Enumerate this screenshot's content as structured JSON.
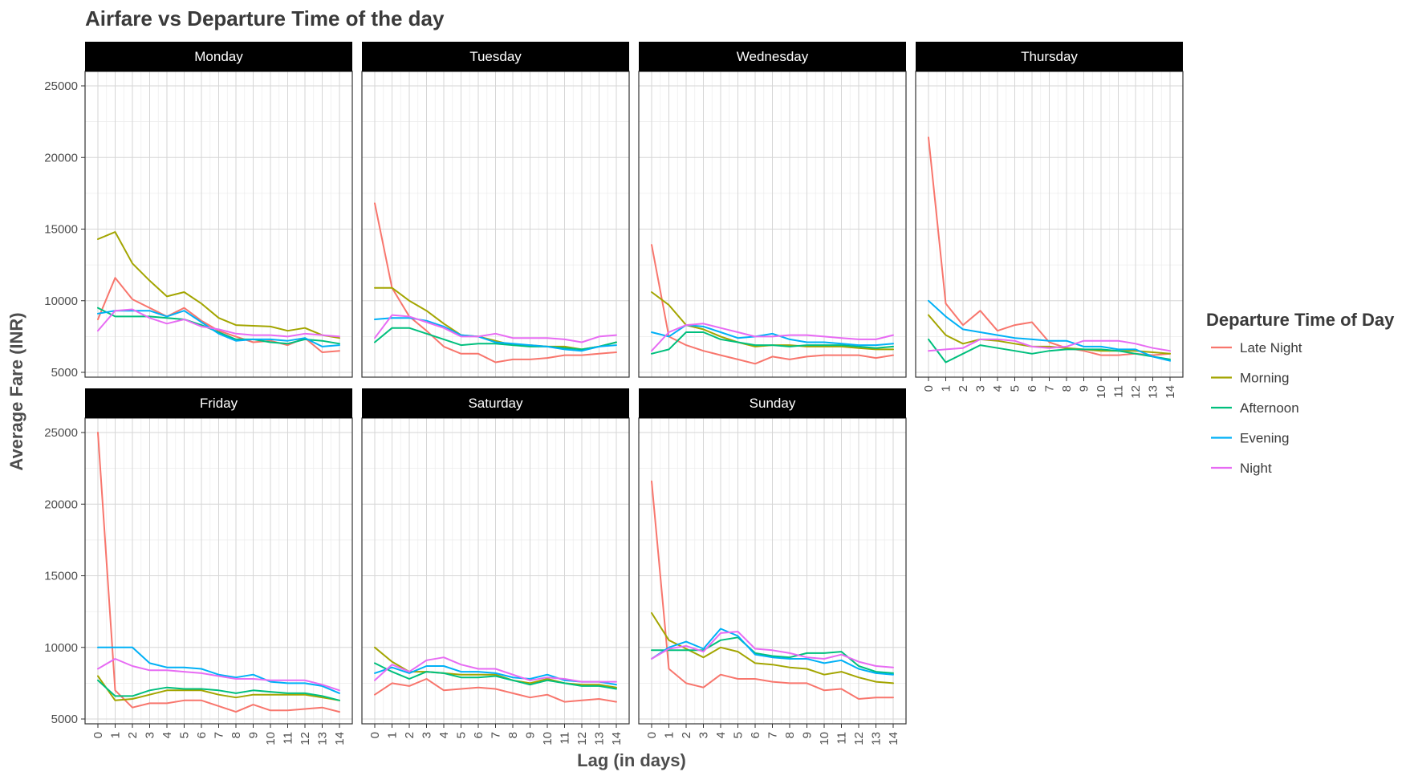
{
  "chart_data": {
    "type": "line",
    "title": "Airfare vs Departure Time of the day",
    "xlabel": "Lag (in days)",
    "ylabel": "Average Fare (INR)",
    "x": [
      0,
      1,
      2,
      3,
      4,
      5,
      6,
      7,
      8,
      9,
      10,
      11,
      12,
      13,
      14
    ],
    "xlim": [
      0,
      14
    ],
    "ylim": [
      5000,
      25000
    ],
    "yticks": [
      5000,
      10000,
      15000,
      20000,
      25000
    ],
    "grid": true,
    "legend": {
      "title": "Departure Time of Day",
      "position": "right",
      "entries": [
        {
          "name": "Late Night",
          "color": "#F8766D"
        },
        {
          "name": "Morning",
          "color": "#A3A500"
        },
        {
          "name": "Afternoon",
          "color": "#00BF7D"
        },
        {
          "name": "Evening",
          "color": "#00B0F6"
        },
        {
          "name": "Night",
          "color": "#E76BF3"
        }
      ]
    },
    "panels": [
      {
        "label": "Monday",
        "series": [
          {
            "name": "Late Night",
            "values": [
              8700,
              11600,
              10100,
              9500,
              8900,
              9500,
              8600,
              7900,
              7500,
              7100,
              7200,
              6900,
              7400,
              6400,
              6500
            ]
          },
          {
            "name": "Morning",
            "values": [
              14300,
              14800,
              12600,
              11400,
              10300,
              10600,
              9800,
              8800,
              8300,
              8250,
              8200,
              7900,
              8100,
              7600,
              7400
            ]
          },
          {
            "name": "Afternoon",
            "values": [
              9500,
              8900,
              8900,
              8900,
              8800,
              8700,
              8300,
              7800,
              7300,
              7300,
              7100,
              7000,
              7300,
              7200,
              7000
            ]
          },
          {
            "name": "Evening",
            "values": [
              9100,
              9300,
              9300,
              9300,
              8900,
              9300,
              8500,
              7700,
              7200,
              7300,
              7300,
              7200,
              7400,
              6800,
              6900
            ]
          },
          {
            "name": "Night",
            "values": [
              7900,
              9300,
              9400,
              8800,
              8400,
              8700,
              8200,
              8000,
              7700,
              7600,
              7600,
              7500,
              7700,
              7600,
              7500
            ]
          }
        ]
      },
      {
        "label": "Tuesday",
        "series": [
          {
            "name": "Late Night",
            "values": [
              16800,
              10900,
              8900,
              7900,
              6800,
              6300,
              6300,
              5700,
              5900,
              5900,
              6000,
              6200,
              6200,
              6300,
              6400
            ]
          },
          {
            "name": "Morning",
            "values": [
              10900,
              10900,
              10000,
              9300,
              8400,
              7600,
              7500,
              7200,
              6900,
              6900,
              6800,
              6800,
              6600,
              6800,
              7100
            ]
          },
          {
            "name": "Afternoon",
            "values": [
              7100,
              8100,
              8100,
              7700,
              7300,
              6900,
              7000,
              7000,
              6900,
              6800,
              6800,
              6700,
              6600,
              6800,
              7100
            ]
          },
          {
            "name": "Evening",
            "values": [
              8700,
              8800,
              8800,
              8600,
              8200,
              7600,
              7500,
              7100,
              7000,
              6900,
              6800,
              6600,
              6500,
              6800,
              6900
            ]
          },
          {
            "name": "Night",
            "values": [
              7400,
              9000,
              8900,
              8500,
              8100,
              7500,
              7500,
              7700,
              7400,
              7400,
              7400,
              7300,
              7100,
              7500,
              7600
            ]
          }
        ]
      },
      {
        "label": "Wednesday",
        "series": [
          {
            "name": "Late Night",
            "values": [
              13900,
              7500,
              6900,
              6500,
              6200,
              5900,
              5600,
              6100,
              5900,
              6100,
              6200,
              6200,
              6200,
              6000,
              6200
            ]
          },
          {
            "name": "Morning",
            "values": [
              10600,
              9700,
              8300,
              8000,
              7500,
              7100,
              6800,
              6900,
              6900,
              6800,
              6800,
              6800,
              6700,
              6600,
              6600
            ]
          },
          {
            "name": "Afternoon",
            "values": [
              6300,
              6600,
              7800,
              7800,
              7300,
              7100,
              6900,
              6900,
              6800,
              6900,
              6900,
              6900,
              6800,
              6700,
              6800
            ]
          },
          {
            "name": "Evening",
            "values": [
              7800,
              7500,
              8300,
              8200,
              7800,
              7400,
              7500,
              7700,
              7300,
              7100,
              7100,
              7000,
              6900,
              6900,
              7000
            ]
          },
          {
            "name": "Night",
            "values": [
              6500,
              7800,
              8300,
              8400,
              8100,
              7800,
              7500,
              7500,
              7600,
              7600,
              7500,
              7400,
              7300,
              7300,
              7600
            ]
          }
        ]
      },
      {
        "label": "Thursday",
        "series": [
          {
            "name": "Late Night",
            "values": [
              21400,
              9800,
              8300,
              9300,
              7900,
              8300,
              8500,
              7100,
              6700,
              6500,
              6200,
              6200,
              6300,
              6200,
              6300
            ]
          },
          {
            "name": "Morning",
            "values": [
              9000,
              7600,
              7000,
              7300,
              7200,
              7000,
              6800,
              6800,
              6700,
              6600,
              6500,
              6500,
              6500,
              6400,
              6300
            ]
          },
          {
            "name": "Afternoon",
            "values": [
              7300,
              5700,
              6300,
              6900,
              6700,
              6500,
              6300,
              6500,
              6600,
              6600,
              6600,
              6500,
              6300,
              6100,
              5900
            ]
          },
          {
            "name": "Evening",
            "values": [
              10000,
              8900,
              8000,
              7800,
              7600,
              7400,
              7300,
              7200,
              7200,
              6800,
              6800,
              6600,
              6600,
              6100,
              5800
            ]
          },
          {
            "name": "Night",
            "values": [
              6500,
              6600,
              6700,
              7300,
              7300,
              7200,
              6800,
              6700,
              6800,
              7200,
              7200,
              7200,
              7000,
              6700,
              6500
            ]
          }
        ]
      },
      {
        "label": "Friday",
        "series": [
          {
            "name": "Late Night",
            "values": [
              25000,
              7000,
              5800,
              6100,
              6100,
              6300,
              6300,
              5900,
              5500,
              6000,
              5600,
              5600,
              5700,
              5800,
              5500
            ]
          },
          {
            "name": "Morning",
            "values": [
              8000,
              6300,
              6400,
              6700,
              7000,
              7000,
              7000,
              6700,
              6500,
              6700,
              6700,
              6700,
              6700,
              6500,
              6300
            ]
          },
          {
            "name": "Afternoon",
            "values": [
              7700,
              6600,
              6600,
              7000,
              7200,
              7100,
              7100,
              7000,
              6800,
              7000,
              6900,
              6800,
              6800,
              6600,
              6300
            ]
          },
          {
            "name": "Evening",
            "values": [
              10000,
              10000,
              10000,
              8900,
              8600,
              8600,
              8500,
              8100,
              7900,
              8100,
              7600,
              7500,
              7500,
              7300,
              6800
            ]
          },
          {
            "name": "Night",
            "values": [
              8500,
              9200,
              8700,
              8400,
              8400,
              8300,
              8200,
              8000,
              7800,
              7800,
              7700,
              7700,
              7700,
              7400,
              7000
            ]
          }
        ]
      },
      {
        "label": "Saturday",
        "series": [
          {
            "name": "Late Night",
            "values": [
              6700,
              7500,
              7300,
              7800,
              7000,
              7100,
              7200,
              7100,
              6800,
              6500,
              6700,
              6200,
              6300,
              6400,
              6200
            ]
          },
          {
            "name": "Morning",
            "values": [
              10000,
              9000,
              8300,
              8300,
              8200,
              8100,
              8100,
              8100,
              7700,
              7500,
              7800,
              7500,
              7400,
              7400,
              7200
            ]
          },
          {
            "name": "Afternoon",
            "values": [
              8900,
              8300,
              7800,
              8300,
              8200,
              7900,
              7900,
              8000,
              7700,
              7400,
              7700,
              7500,
              7300,
              7300,
              7100
            ]
          },
          {
            "name": "Evening",
            "values": [
              8200,
              8600,
              8200,
              8700,
              8700,
              8300,
              8300,
              8200,
              7900,
              7800,
              8100,
              7700,
              7600,
              7600,
              7400
            ]
          },
          {
            "name": "Night",
            "values": [
              7700,
              8800,
              8300,
              9100,
              9300,
              8800,
              8500,
              8500,
              8100,
              7700,
              7900,
              7800,
              7600,
              7600,
              7600
            ]
          }
        ]
      },
      {
        "label": "Sunday",
        "series": [
          {
            "name": "Late Night",
            "values": [
              21600,
              8500,
              7500,
              7200,
              8100,
              7800,
              7800,
              7600,
              7500,
              7500,
              7000,
              7100,
              6400,
              6500,
              6500
            ]
          },
          {
            "name": "Morning",
            "values": [
              12400,
              10500,
              9900,
              9300,
              10000,
              9700,
              8900,
              8800,
              8600,
              8500,
              8100,
              8300,
              7900,
              7600,
              7500
            ]
          },
          {
            "name": "Afternoon",
            "values": [
              9800,
              9800,
              9800,
              9800,
              10500,
              10700,
              9600,
              9400,
              9300,
              9600,
              9600,
              9700,
              8700,
              8300,
              8200
            ]
          },
          {
            "name": "Evening",
            "values": [
              9200,
              10000,
              10400,
              9900,
              11300,
              10800,
              9500,
              9300,
              9200,
              9200,
              8900,
              9100,
              8500,
              8200,
              8100
            ]
          },
          {
            "name": "Night",
            "values": [
              9200,
              9900,
              10100,
              9700,
              11000,
              11100,
              9900,
              9800,
              9600,
              9300,
              9200,
              9500,
              9000,
              8700,
              8600
            ]
          }
        ]
      }
    ]
  }
}
